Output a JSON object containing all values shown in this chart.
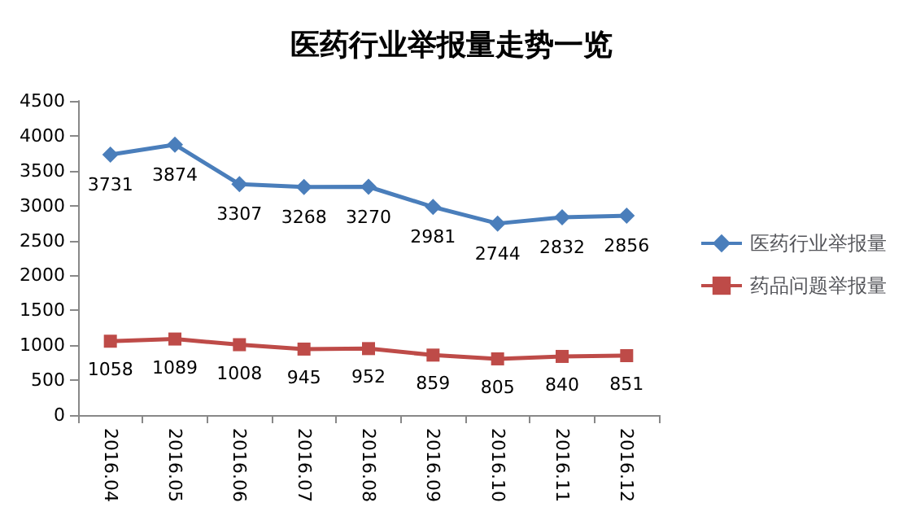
{
  "chart_data": {
    "type": "line",
    "title": "医药行业举报量走势一览",
    "categories": [
      "2016.04",
      "2016.05",
      "2016.06",
      "2016.07",
      "2016.08",
      "2016.09",
      "2016.10",
      "2016.11",
      "2016.12"
    ],
    "series": [
      {
        "name": "医药行业举报量",
        "color": "#4a7ebb",
        "marker": "diamond",
        "values": [
          3731,
          3874,
          3307,
          3268,
          3270,
          2981,
          2744,
          2832,
          2856
        ]
      },
      {
        "name": "药品问题举报量",
        "color": "#be4b48",
        "marker": "square",
        "values": [
          1058,
          1089,
          1008,
          945,
          952,
          859,
          805,
          840,
          851
        ]
      }
    ],
    "ylim": [
      0,
      4500
    ],
    "yticks": [
      0,
      500,
      1000,
      1500,
      2000,
      2500,
      3000,
      3500,
      4000,
      4500
    ],
    "grid": false,
    "legend": "right",
    "data_labels": true
  }
}
